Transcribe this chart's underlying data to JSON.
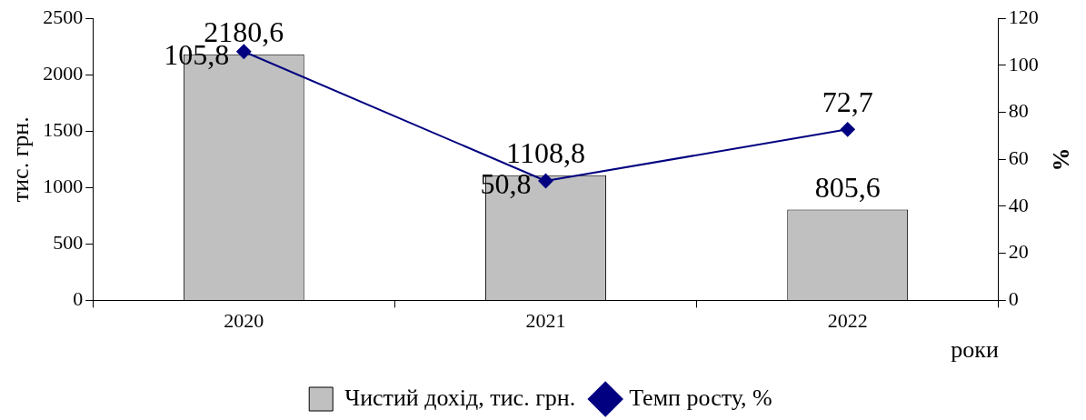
{
  "chart_data": {
    "type": "bar",
    "categories": [
      "2020",
      "2021",
      "2022"
    ],
    "series": [
      {
        "name": "Чистий дохід, тис. грн.",
        "color": "#c0c0c0",
        "values": [
          2180.6,
          1108.8,
          805.6
        ],
        "value_labels": [
          "2180,6",
          "1108,8",
          "805,6"
        ]
      },
      {
        "name": "Темп росту, %",
        "type": "line",
        "axis": "y2",
        "color": "#000080",
        "values": [
          105.8,
          50.8,
          72.7
        ],
        "value_labels": [
          "105,8",
          "50,8",
          "72,7"
        ]
      }
    ],
    "xlabel": "роки",
    "ylabel": "тис. грн.",
    "y2label": "%",
    "ylim": [
      0,
      2500
    ],
    "yticks": [
      0,
      500,
      1000,
      1500,
      2000,
      2500
    ],
    "y2lim": [
      0,
      120
    ],
    "y2ticks": [
      0,
      20,
      40,
      60,
      80,
      100,
      120
    ],
    "legend": "bottom",
    "grid": false,
    "marker": "diamond",
    "line_style": "solid"
  }
}
